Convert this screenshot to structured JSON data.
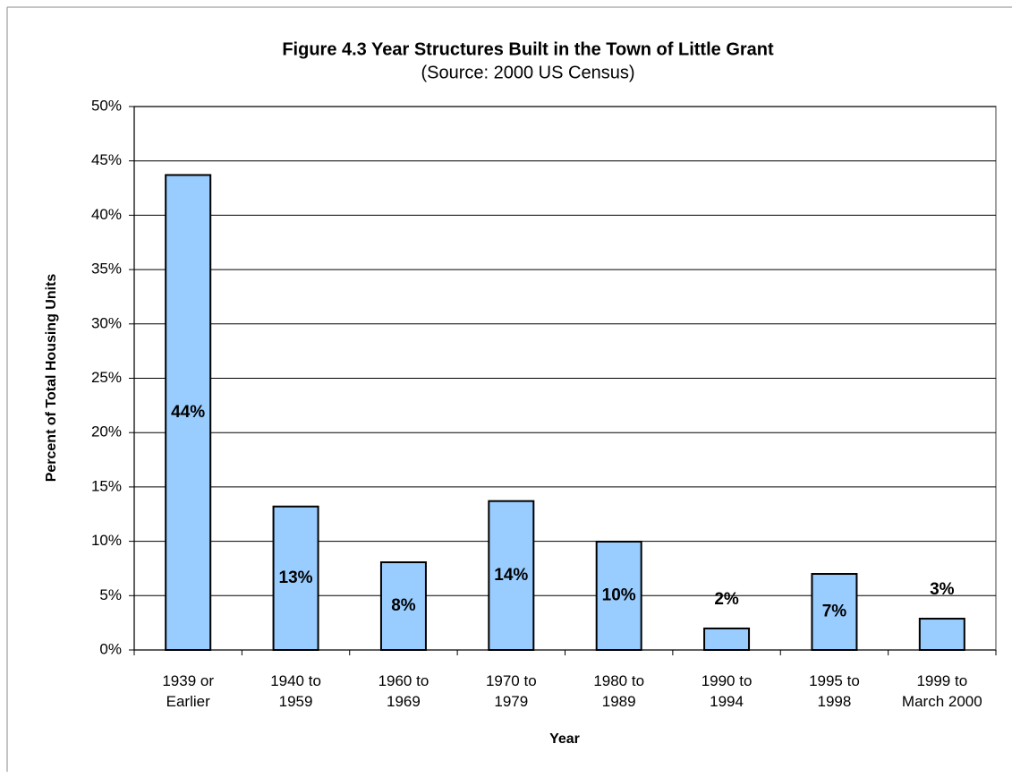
{
  "chart_data": {
    "type": "bar",
    "title": "Figure 4.3 Year Structures Built in the Town of Little Grant",
    "subtitle": "(Source: 2000 US Census)",
    "x_label": "Year",
    "y_label": "Percent of Total Housing Units",
    "categories": [
      "1939 or\nEarlier",
      "1940 to\n1959",
      "1960 to\n1969",
      "1970 to\n1979",
      "1980 to\n1989",
      "1990 to\n1994",
      "1995 to\n1998",
      "1999 to\nMarch 2000"
    ],
    "values": [
      43.7,
      13.2,
      8.07,
      13.7,
      9.97,
      1.98,
      7.0,
      2.88
    ],
    "value_labels": [
      "44%",
      "13%",
      "8%",
      "14%",
      "10%",
      "2%",
      "7%",
      "3%"
    ],
    "color": "#99ccff",
    "ylim": [
      0,
      50
    ],
    "yticks": [
      {
        "value": 0,
        "label": "0%"
      },
      {
        "value": 5,
        "label": "5%"
      },
      {
        "value": 10,
        "label": "10%"
      },
      {
        "value": 15,
        "label": "15%"
      },
      {
        "value": 20,
        "label": "20%"
      },
      {
        "value": 25,
        "label": "25%"
      },
      {
        "value": 30,
        "label": "30%"
      },
      {
        "value": 35,
        "label": "35%"
      },
      {
        "value": 40,
        "label": "40%"
      },
      {
        "value": 45,
        "label": "45%"
      },
      {
        "value": 50,
        "label": "50%"
      }
    ],
    "grid": true
  }
}
